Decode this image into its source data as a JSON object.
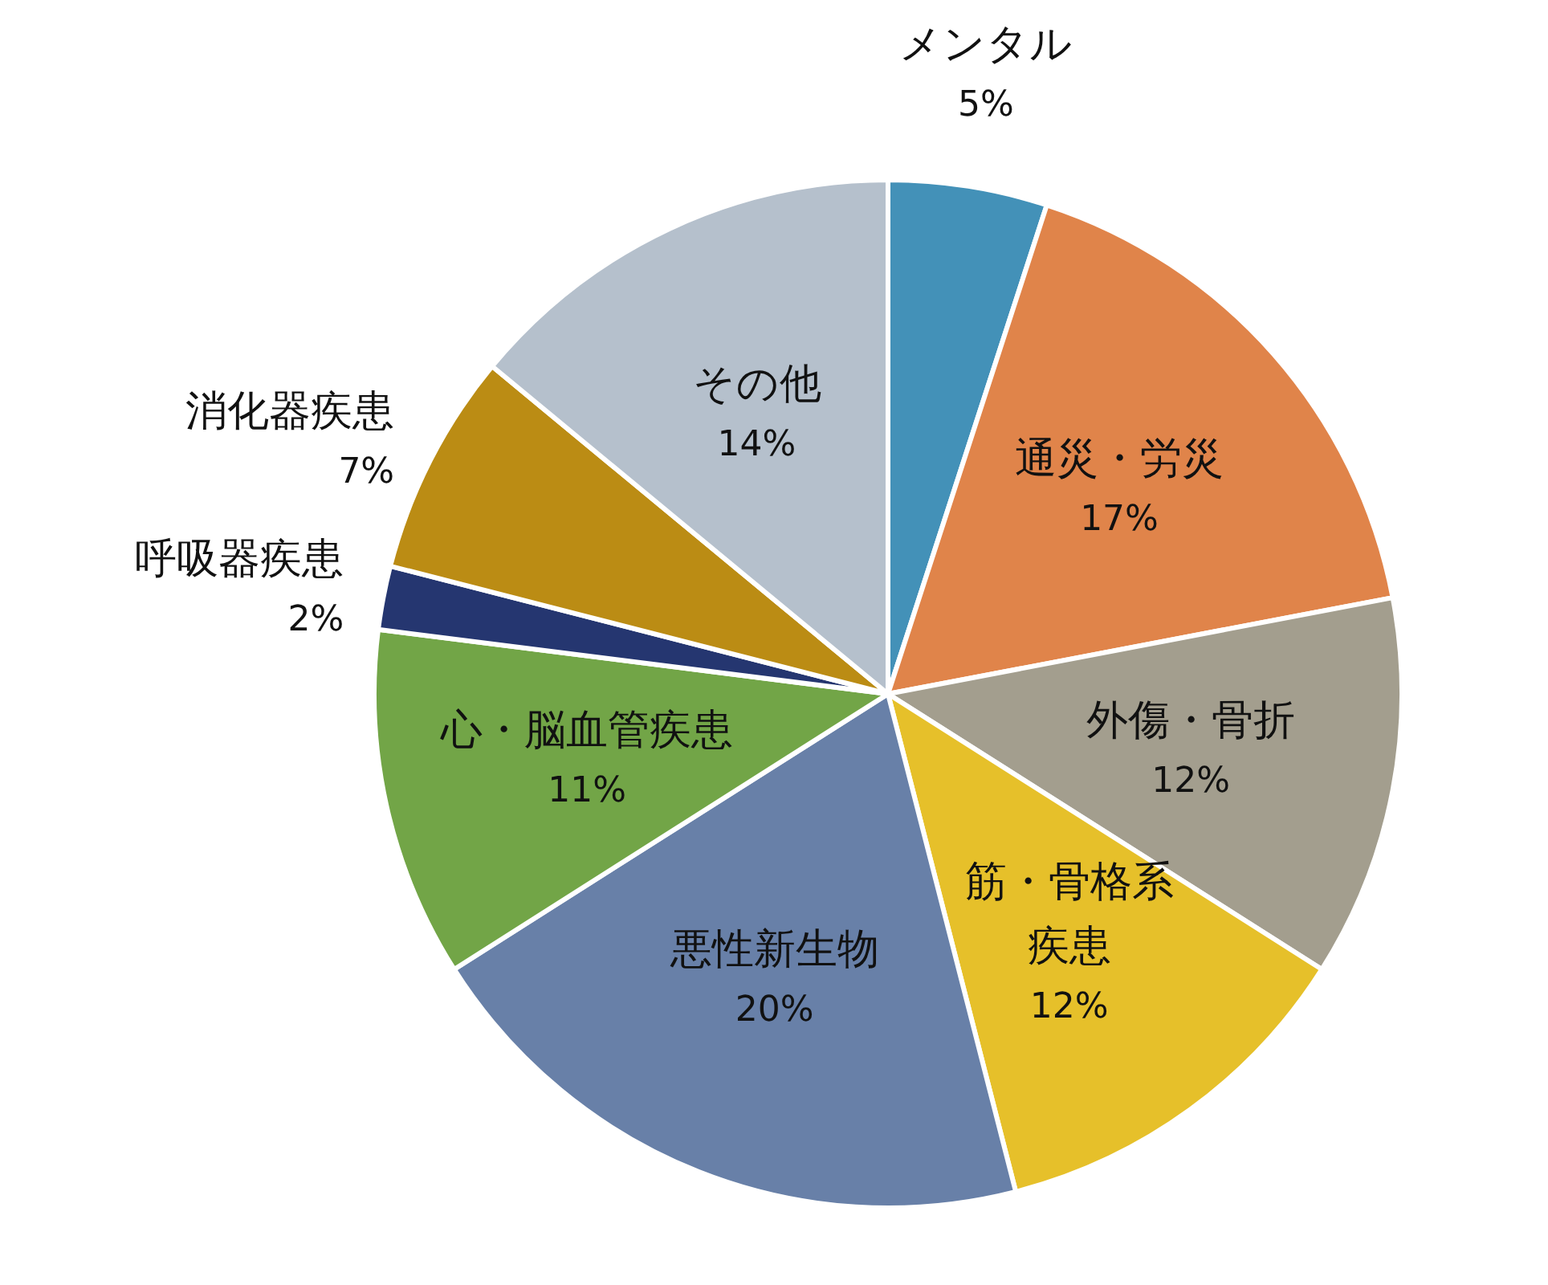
{
  "chart_data": {
    "type": "pie",
    "categories": [
      "メンタル",
      "通災・労災",
      "外傷・骨折",
      "筋・骨格系疾患",
      "悪性新生物",
      "心・脳血管疾患",
      "呼吸器疾患",
      "消化器疾患",
      "その他"
    ],
    "values": [
      5,
      17,
      12,
      12,
      20,
      11,
      2,
      7,
      14
    ],
    "value_labels": [
      "5%",
      "17%",
      "12%",
      "12%",
      "20%",
      "11%",
      "2%",
      "7%",
      "14%"
    ],
    "colors": [
      "#4391b8",
      "#e0844a",
      "#a39e8e",
      "#e6c02a",
      "#6880a8",
      "#72a547",
      "#253670",
      "#bb8c14",
      "#b5c0cc"
    ]
  }
}
